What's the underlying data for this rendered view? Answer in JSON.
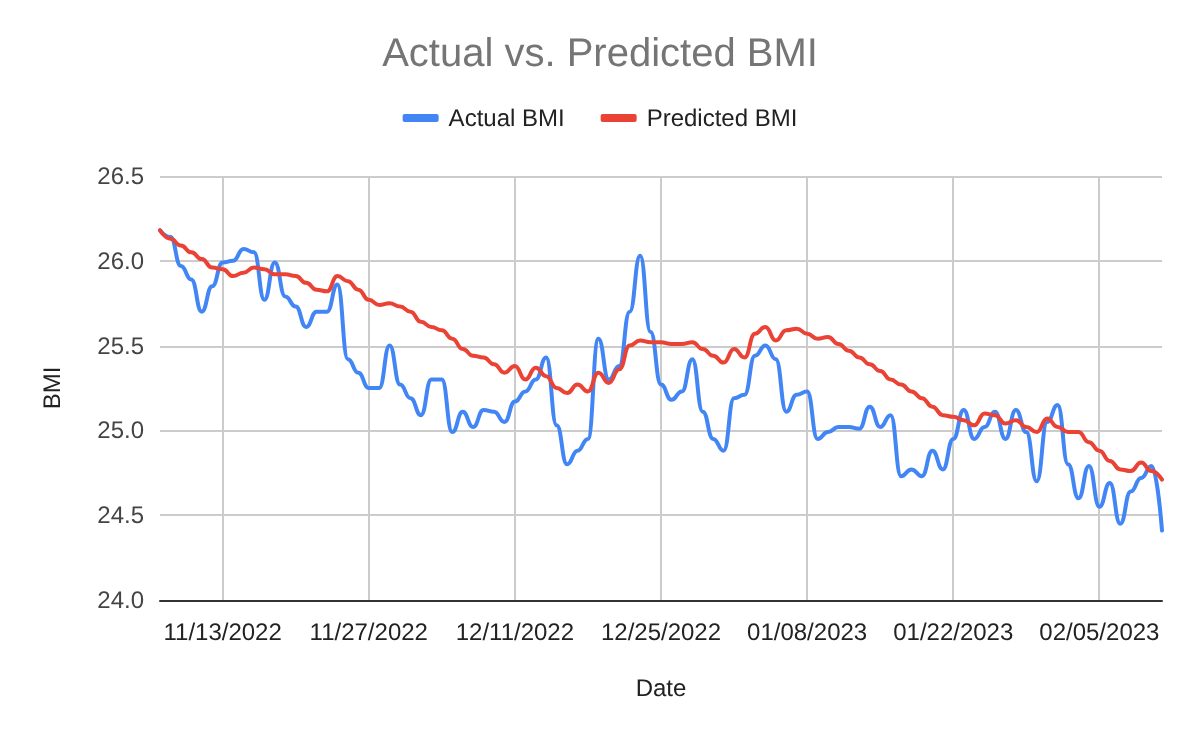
{
  "chart_data": {
    "type": "line",
    "title": "Actual vs. Predicted BMI",
    "xlabel": "Date",
    "ylabel": "BMI",
    "x": [
      "2022-11-07",
      "2022-11-08",
      "2022-11-09",
      "2022-11-10",
      "2022-11-11",
      "2022-11-12",
      "2022-11-13",
      "2022-11-14",
      "2022-11-15",
      "2022-11-16",
      "2022-11-17",
      "2022-11-18",
      "2022-11-19",
      "2022-11-20",
      "2022-11-21",
      "2022-11-22",
      "2022-11-23",
      "2022-11-24",
      "2022-11-25",
      "2022-11-26",
      "2022-11-27",
      "2022-11-28",
      "2022-11-29",
      "2022-11-30",
      "2022-12-01",
      "2022-12-02",
      "2022-12-03",
      "2022-12-04",
      "2022-12-05",
      "2022-12-06",
      "2022-12-07",
      "2022-12-08",
      "2022-12-09",
      "2022-12-10",
      "2022-12-11",
      "2022-12-12",
      "2022-12-13",
      "2022-12-14",
      "2022-12-15",
      "2022-12-16",
      "2022-12-17",
      "2022-12-18",
      "2022-12-19",
      "2022-12-20",
      "2022-12-21",
      "2022-12-22",
      "2022-12-23",
      "2022-12-24",
      "2022-12-25",
      "2022-12-26",
      "2022-12-27",
      "2022-12-28",
      "2022-12-29",
      "2022-12-30",
      "2022-12-31",
      "2023-01-01",
      "2023-01-02",
      "2023-01-03",
      "2023-01-04",
      "2023-01-05",
      "2023-01-06",
      "2023-01-07",
      "2023-01-08",
      "2023-01-09",
      "2023-01-10",
      "2023-01-11",
      "2023-01-12",
      "2023-01-13",
      "2023-01-14",
      "2023-01-15",
      "2023-01-16",
      "2023-01-17",
      "2023-01-18",
      "2023-01-19",
      "2023-01-20",
      "2023-01-21",
      "2023-01-22",
      "2023-01-23",
      "2023-01-24",
      "2023-01-25",
      "2023-01-26",
      "2023-01-27",
      "2023-01-28",
      "2023-01-29",
      "2023-01-30",
      "2023-01-31",
      "2023-02-01",
      "2023-02-02",
      "2023-02-03",
      "2023-02-04",
      "2023-02-05",
      "2023-02-06",
      "2023-02-07",
      "2023-02-08",
      "2023-02-09",
      "2023-02-10",
      "2023-02-11"
    ],
    "series": [
      {
        "name": "Actual BMI",
        "color": "#4285f4",
        "values": [
          26.18,
          26.14,
          25.97,
          25.89,
          25.7,
          25.85,
          25.99,
          26.0,
          26.07,
          26.05,
          25.77,
          25.99,
          25.79,
          25.73,
          25.61,
          25.7,
          25.7,
          25.86,
          25.42,
          25.34,
          25.25,
          25.25,
          25.5,
          25.27,
          25.19,
          25.09,
          25.3,
          25.3,
          24.99,
          25.11,
          25.02,
          25.12,
          25.11,
          25.05,
          25.17,
          25.23,
          25.3,
          25.43,
          25.03,
          24.8,
          24.88,
          24.95,
          25.54,
          25.3,
          25.38,
          25.7,
          26.03,
          25.58,
          25.27,
          25.18,
          25.23,
          25.42,
          25.11,
          24.95,
          24.88,
          25.19,
          25.21,
          25.44,
          25.5,
          25.42,
          25.11,
          25.21,
          25.23,
          24.95,
          24.99,
          25.02,
          25.02,
          25.01,
          25.14,
          25.02,
          25.09,
          24.73,
          24.77,
          24.73,
          24.88,
          24.77,
          24.95,
          25.12,
          24.95,
          25.02,
          25.11,
          24.95,
          25.12,
          24.99,
          24.7,
          25.05,
          25.15,
          24.8,
          24.6,
          24.79,
          24.55,
          24.69,
          24.45,
          24.64,
          24.72,
          24.79,
          24.41
        ]
      },
      {
        "name": "Predicted BMI",
        "color": "#ea4335",
        "values": [
          26.18,
          26.13,
          26.09,
          26.05,
          26.01,
          25.96,
          25.95,
          25.91,
          25.93,
          25.96,
          25.95,
          25.92,
          25.92,
          25.91,
          25.87,
          25.83,
          25.82,
          25.91,
          25.88,
          25.83,
          25.77,
          25.74,
          25.75,
          25.73,
          25.7,
          25.64,
          25.61,
          25.59,
          25.54,
          25.48,
          25.44,
          25.43,
          25.39,
          25.34,
          25.38,
          25.3,
          25.37,
          25.32,
          25.25,
          25.22,
          25.27,
          25.23,
          25.34,
          25.28,
          25.36,
          25.5,
          25.53,
          25.52,
          25.52,
          25.51,
          25.51,
          25.52,
          25.48,
          25.44,
          25.4,
          25.48,
          25.43,
          25.57,
          25.61,
          25.53,
          25.59,
          25.6,
          25.57,
          25.54,
          25.55,
          25.51,
          25.47,
          25.43,
          25.39,
          25.35,
          25.3,
          25.27,
          25.23,
          25.19,
          25.14,
          25.09,
          25.08,
          25.06,
          25.03,
          25.1,
          25.09,
          25.04,
          25.06,
          25.02,
          24.99,
          25.07,
          25.02,
          24.99,
          24.99,
          24.93,
          24.88,
          24.82,
          24.77,
          24.76,
          24.81,
          24.76,
          24.71
        ]
      }
    ],
    "xlim": [
      "2022-11-07",
      "2023-02-11"
    ],
    "xticks": [
      {
        "value": "2022-11-13",
        "label": "11/13/2022"
      },
      {
        "value": "2022-11-27",
        "label": "11/27/2022"
      },
      {
        "value": "2022-12-11",
        "label": "12/11/2022"
      },
      {
        "value": "2022-12-25",
        "label": "12/25/2022"
      },
      {
        "value": "2023-01-08",
        "label": "01/08/2023"
      },
      {
        "value": "2023-01-22",
        "label": "01/22/2023"
      },
      {
        "value": "2023-02-05",
        "label": "02/05/2023"
      }
    ],
    "ylim": [
      24.0,
      26.5
    ],
    "yticks": [
      {
        "value": 24.0,
        "label": "24.0"
      },
      {
        "value": 24.5,
        "label": "24.5"
      },
      {
        "value": 25.0,
        "label": "25.0"
      },
      {
        "value": 25.5,
        "label": "25.5"
      },
      {
        "value": 26.0,
        "label": "26.0"
      },
      {
        "value": 26.5,
        "label": "26.5"
      }
    ],
    "grid": true,
    "legend": "top",
    "marker": "none",
    "line_style": "solid"
  }
}
